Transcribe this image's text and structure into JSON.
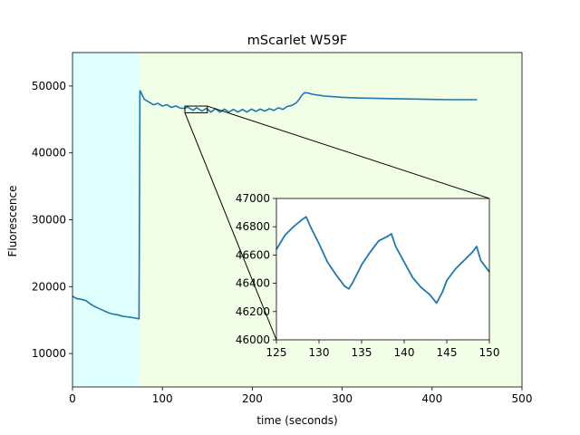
{
  "chart_data": {
    "type": "line",
    "title": "mScarlet W59F",
    "xlabel": "time (seconds)",
    "ylabel": "Fluorescence",
    "xlim": [
      0,
      500
    ],
    "ylim": [
      5000,
      55000
    ],
    "xticks": [
      0,
      100,
      200,
      300,
      400,
      500
    ],
    "yticks": [
      10000,
      20000,
      30000,
      40000,
      50000
    ],
    "grid": false,
    "background_regions": [
      {
        "x": [
          0,
          74
        ],
        "color": "#e0ffff"
      },
      {
        "x": [
          74,
          500
        ],
        "color": "#f0ffe6"
      }
    ],
    "series": [
      {
        "color": "#1f77b4",
        "x": [
          0,
          2,
          5,
          10,
          15,
          20,
          25,
          30,
          35,
          40,
          45,
          50,
          55,
          60,
          65,
          70,
          73,
          74,
          75,
          76,
          78,
          80,
          85,
          90,
          95,
          100,
          105,
          110,
          115,
          120,
          125,
          128,
          134,
          138,
          144,
          149,
          154,
          159,
          164,
          169,
          174,
          179,
          184,
          189,
          194,
          199,
          204,
          209,
          214,
          219,
          224,
          229,
          234,
          239,
          244,
          249,
          252,
          255,
          258,
          262,
          266,
          270,
          275,
          280,
          290,
          300,
          320,
          340,
          360,
          380,
          400,
          420,
          440,
          450
        ],
        "y": [
          18600,
          18400,
          18200,
          18100,
          17900,
          17400,
          17000,
          16700,
          16400,
          16100,
          15900,
          15800,
          15600,
          15500,
          15400,
          15300,
          15200,
          15200,
          49300,
          49100,
          48500,
          48000,
          47600,
          47200,
          47400,
          47000,
          47200,
          46800,
          47000,
          46700,
          46650,
          46870,
          46350,
          46760,
          46260,
          46660,
          46100,
          46600,
          46100,
          46550,
          46100,
          46500,
          46100,
          46500,
          46100,
          46550,
          46200,
          46550,
          46250,
          46600,
          46350,
          46750,
          46500,
          46950,
          47100,
          47500,
          48000,
          48600,
          49000,
          48950,
          48800,
          48700,
          48600,
          48500,
          48400,
          48300,
          48200,
          48150,
          48100,
          48050,
          48000,
          47950,
          47950,
          47950
        ]
      }
    ],
    "inset": {
      "xlim": [
        125,
        150
      ],
      "ylim": [
        46000,
        47000
      ],
      "xticks": [
        125,
        130,
        135,
        140,
        145,
        150
      ],
      "yticks": [
        46000,
        46200,
        46400,
        46600,
        46800,
        47000
      ],
      "series": [
        {
          "color": "#1f77b4",
          "x": [
            125,
            126,
            127,
            128,
            128.5,
            129,
            130,
            131,
            132,
            133,
            133.5,
            134,
            135,
            136,
            137,
            138,
            138.5,
            139,
            140,
            141,
            142,
            143,
            143.8,
            144.5,
            145,
            146,
            147,
            148,
            148.5,
            149,
            150
          ],
          "y": [
            46640,
            46740,
            46800,
            46850,
            46870,
            46800,
            46680,
            46550,
            46460,
            46380,
            46360,
            46410,
            46530,
            46620,
            46700,
            46730,
            46750,
            46660,
            46550,
            46440,
            46370,
            46320,
            46260,
            46340,
            46420,
            46500,
            46560,
            46620,
            46660,
            46560,
            46480
          ]
        }
      ]
    }
  }
}
